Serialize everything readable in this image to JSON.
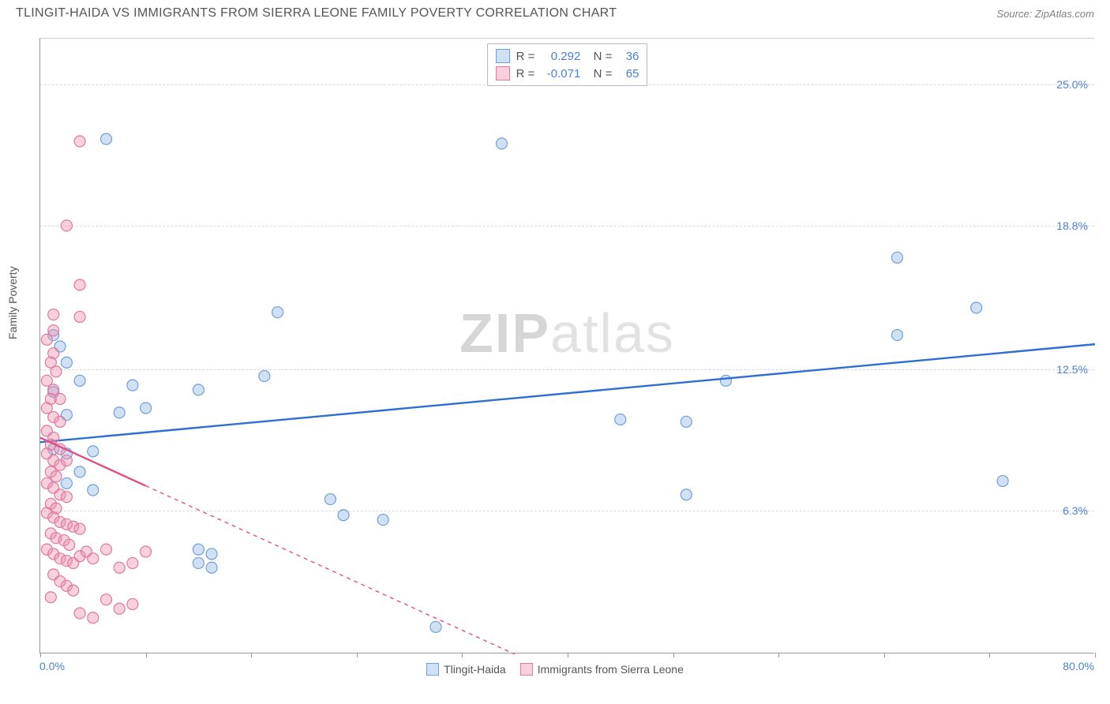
{
  "header": {
    "title": "TLINGIT-HAIDA VS IMMIGRANTS FROM SIERRA LEONE FAMILY POVERTY CORRELATION CHART",
    "source_prefix": "Source: ",
    "source_name": "ZipAtlas.com"
  },
  "chart": {
    "type": "scatter",
    "ylabel": "Family Poverty",
    "xlim": [
      0,
      80
    ],
    "ylim": [
      0,
      27
    ],
    "xaxis_min_label": "0.0%",
    "xaxis_max_label": "80.0%",
    "xticks": [
      0,
      8,
      16,
      24,
      32,
      40,
      48,
      56,
      64,
      72,
      80
    ],
    "ygrid": [
      {
        "v": 6.3,
        "label": "6.3%"
      },
      {
        "v": 12.5,
        "label": "12.5%"
      },
      {
        "v": 18.8,
        "label": "18.8%"
      },
      {
        "v": 25.0,
        "label": "25.0%"
      }
    ],
    "background_color": "#ffffff",
    "grid_color": "#d8d8d8",
    "axis_color": "#999999",
    "label_color": "#555555",
    "tick_label_color": "#4a80d4",
    "marker_radius": 7,
    "marker_stroke_width": 1.2,
    "trend_line_width": 2.4,
    "watermark_text_a": "ZIP",
    "watermark_text_b": "atlas",
    "series": [
      {
        "key": "tlingit",
        "label": "Tlingit-Haida",
        "fill": "rgba(120,170,230,0.35)",
        "stroke": "#6fa0d8",
        "trend_color": "#2e6fd1",
        "trend_dash": "none",
        "R": "0.292",
        "N": "36",
        "trend": {
          "x1": 0,
          "y1": 9.3,
          "x2": 80,
          "y2": 13.6
        },
        "points": [
          [
            5,
            22.6
          ],
          [
            35,
            22.4
          ],
          [
            65,
            17.4
          ],
          [
            71,
            15.2
          ],
          [
            18,
            15.0
          ],
          [
            65,
            14.0
          ],
          [
            52,
            12.0
          ],
          [
            17,
            12.2
          ],
          [
            3,
            12.0
          ],
          [
            7,
            11.8
          ],
          [
            12,
            11.6
          ],
          [
            1,
            14.0
          ],
          [
            1.5,
            13.5
          ],
          [
            2,
            12.8
          ],
          [
            2,
            10.5
          ],
          [
            49,
            10.2
          ],
          [
            4,
            8.9
          ],
          [
            8,
            10.8
          ],
          [
            6,
            10.6
          ],
          [
            44,
            10.3
          ],
          [
            2,
            7.5
          ],
          [
            4,
            7.2
          ],
          [
            49,
            7.0
          ],
          [
            73,
            7.6
          ],
          [
            22,
            6.8
          ],
          [
            12,
            4.6
          ],
          [
            13,
            4.4
          ],
          [
            12,
            4.0
          ],
          [
            13,
            3.8
          ],
          [
            23,
            6.1
          ],
          [
            26,
            5.9
          ],
          [
            30,
            1.2
          ],
          [
            1,
            9.0
          ],
          [
            1,
            11.5
          ],
          [
            2,
            8.8
          ],
          [
            3,
            8.0
          ]
        ]
      },
      {
        "key": "sierra",
        "label": "Immigrants from Sierra Leone",
        "fill": "rgba(240,140,170,0.40)",
        "stroke": "#e078a0",
        "trend_color": "#e05088",
        "trend_dash": "5,5",
        "R": "-0.071",
        "N": "65",
        "trend": {
          "x1": 0,
          "y1": 9.5,
          "x2": 36,
          "y2": 0
        },
        "trend_solid_until_x": 8,
        "points": [
          [
            3,
            22.5
          ],
          [
            2,
            18.8
          ],
          [
            3,
            16.2
          ],
          [
            3,
            14.8
          ],
          [
            1,
            14.9
          ],
          [
            1,
            14.2
          ],
          [
            0.5,
            13.8
          ],
          [
            1,
            13.2
          ],
          [
            0.8,
            12.8
          ],
          [
            1.2,
            12.4
          ],
          [
            0.5,
            12.0
          ],
          [
            1,
            11.6
          ],
          [
            0.8,
            11.2
          ],
          [
            1.5,
            11.2
          ],
          [
            0.5,
            10.8
          ],
          [
            1,
            10.4
          ],
          [
            1.5,
            10.2
          ],
          [
            0.5,
            9.8
          ],
          [
            1,
            9.5
          ],
          [
            0.8,
            9.2
          ],
          [
            1.5,
            9.0
          ],
          [
            0.5,
            8.8
          ],
          [
            1,
            8.5
          ],
          [
            1.5,
            8.3
          ],
          [
            2,
            8.5
          ],
          [
            0.8,
            8.0
          ],
          [
            1.2,
            7.8
          ],
          [
            0.5,
            7.5
          ],
          [
            1,
            7.3
          ],
          [
            1.5,
            7.0
          ],
          [
            2,
            6.9
          ],
          [
            0.8,
            6.6
          ],
          [
            1.2,
            6.4
          ],
          [
            0.5,
            6.2
          ],
          [
            1,
            6.0
          ],
          [
            1.5,
            5.8
          ],
          [
            2,
            5.7
          ],
          [
            2.5,
            5.6
          ],
          [
            3,
            5.5
          ],
          [
            0.8,
            5.3
          ],
          [
            1.2,
            5.1
          ],
          [
            1.8,
            5.0
          ],
          [
            2.2,
            4.8
          ],
          [
            0.5,
            4.6
          ],
          [
            1,
            4.4
          ],
          [
            1.5,
            4.2
          ],
          [
            2,
            4.1
          ],
          [
            2.5,
            4.0
          ],
          [
            3,
            4.3
          ],
          [
            3.5,
            4.5
          ],
          [
            4,
            4.2
          ],
          [
            5,
            4.6
          ],
          [
            6,
            3.8
          ],
          [
            7,
            4.0
          ],
          [
            8,
            4.5
          ],
          [
            1,
            3.5
          ],
          [
            1.5,
            3.2
          ],
          [
            2,
            3.0
          ],
          [
            2.5,
            2.8
          ],
          [
            0.8,
            2.5
          ],
          [
            3,
            1.8
          ],
          [
            4,
            1.6
          ],
          [
            5,
            2.4
          ],
          [
            6,
            2.0
          ],
          [
            7,
            2.2
          ]
        ]
      }
    ]
  }
}
